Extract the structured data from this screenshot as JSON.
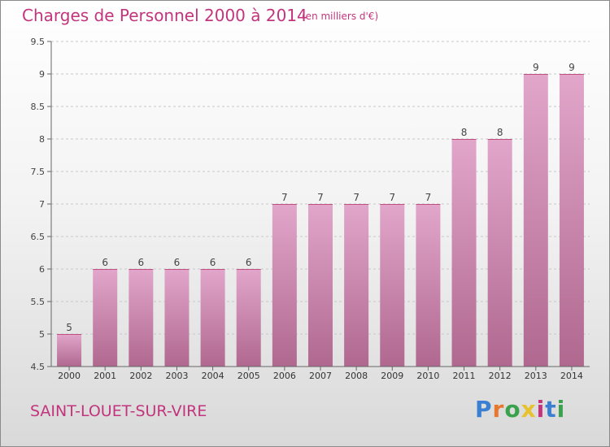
{
  "title": "Charges de Personnel 2000 à 2014",
  "subtitle": "(en milliers d'€)",
  "commune": "SAINT-LOUET-SUR-VIRE",
  "logo": {
    "text": "Proxiti",
    "colors": [
      "#3a7fd1",
      "#e8772e",
      "#3aa24c",
      "#e8c12e",
      "#c2357c",
      "#3a7fd1",
      "#3aa24c"
    ]
  },
  "colors": {
    "accent": "#c2357c",
    "bar_top": "#e2a6cb",
    "bar_bottom": "#b0688f"
  },
  "chart_data": {
    "type": "bar",
    "categories": [
      "2000",
      "2001",
      "2002",
      "2003",
      "2004",
      "2005",
      "2006",
      "2007",
      "2008",
      "2009",
      "2010",
      "2011",
      "2012",
      "2013",
      "2014"
    ],
    "values": [
      5,
      6,
      6,
      6,
      6,
      6,
      7,
      7,
      7,
      7,
      7,
      8,
      8,
      9,
      9
    ],
    "data_labels": [
      "5",
      "6",
      "6",
      "6",
      "6",
      "6",
      "7",
      "7",
      "7",
      "7",
      "7",
      "8",
      "8",
      "9",
      "9"
    ],
    "ylim": [
      4.5,
      9.5
    ],
    "yticks": [
      4.5,
      5,
      5.5,
      6,
      6.5,
      7,
      7.5,
      8,
      8.5,
      9,
      9.5
    ],
    "ytick_labels": [
      "4.5",
      "5",
      "5.5",
      "6",
      "6.5",
      "7",
      "7.5",
      "8",
      "8.5",
      "9",
      "9.5"
    ],
    "grid": true,
    "xlabel": "",
    "ylabel": ""
  }
}
